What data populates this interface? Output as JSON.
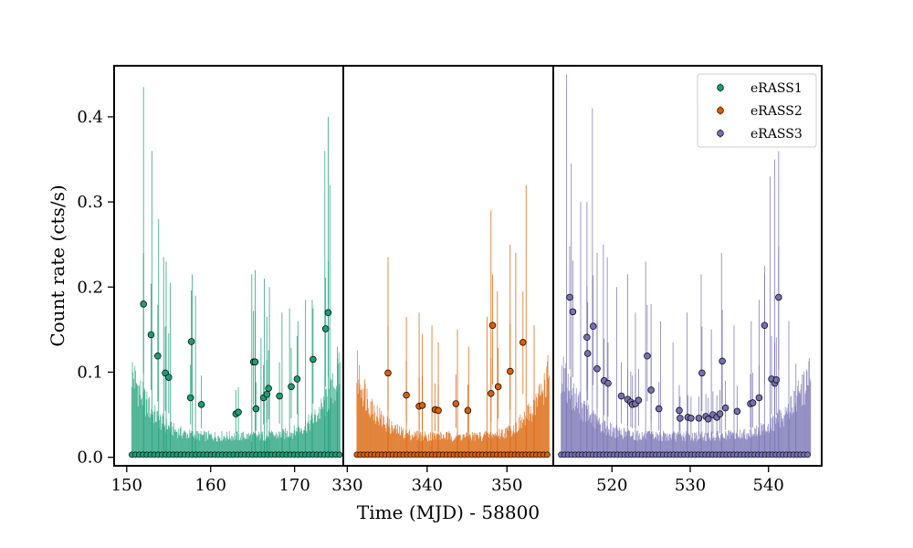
{
  "chart_data": {
    "type": "scatter",
    "subtype": "lightcurve-with-error-bars",
    "ylabel": "Count rate (cts/s)",
    "xlabel": "Time (MJD) - 58800",
    "ylim": [
      -0.01,
      0.46
    ],
    "yticks": [
      0.0,
      0.1,
      0.2,
      0.3,
      0.4
    ],
    "ytick_labels": [
      "0.0",
      "0.1",
      "0.2",
      "0.3",
      "0.4"
    ],
    "legend_position": "top-right",
    "panels": [
      {
        "name": "eRASS1",
        "color": "#1b9e77",
        "xlim": [
          148.5,
          175.8
        ],
        "xticks": [
          150,
          160,
          170
        ],
        "xtick_labels": [
          "150",
          "160",
          "170"
        ],
        "t_range": [
          150.6,
          175.4
        ],
        "points": [
          [
            152.0,
            0.18
          ],
          [
            152.9,
            0.144
          ],
          [
            153.7,
            0.119
          ],
          [
            154.6,
            0.099
          ],
          [
            155.0,
            0.094
          ],
          [
            157.6,
            0.07
          ],
          [
            157.7,
            0.136
          ],
          [
            158.9,
            0.062
          ],
          [
            163.0,
            0.051
          ],
          [
            163.3,
            0.053
          ],
          [
            165.1,
            0.112
          ],
          [
            165.3,
            0.112
          ],
          [
            165.4,
            0.057
          ],
          [
            166.3,
            0.07
          ],
          [
            166.7,
            0.074
          ],
          [
            166.9,
            0.081
          ],
          [
            168.2,
            0.072
          ],
          [
            169.6,
            0.083
          ],
          [
            170.3,
            0.092
          ],
          [
            172.2,
            0.115
          ],
          [
            173.7,
            0.151
          ],
          [
            174.0,
            0.17
          ]
        ],
        "spikes": [
          [
            152.0,
            0.435
          ],
          [
            153.0,
            0.36
          ],
          [
            153.8,
            0.28
          ],
          [
            154.4,
            0.235
          ],
          [
            154.7,
            0.23
          ],
          [
            155.2,
            0.205
          ],
          [
            157.8,
            0.215
          ],
          [
            158.2,
            0.19
          ],
          [
            164.9,
            0.215
          ],
          [
            165.3,
            0.22
          ],
          [
            166.0,
            0.14
          ],
          [
            166.4,
            0.21
          ],
          [
            166.7,
            0.165
          ],
          [
            167.0,
            0.2
          ],
          [
            168.5,
            0.17
          ],
          [
            169.4,
            0.175
          ],
          [
            170.4,
            0.16
          ],
          [
            171.3,
            0.185
          ],
          [
            172.1,
            0.185
          ],
          [
            173.6,
            0.36
          ],
          [
            174.0,
            0.4
          ],
          [
            174.2,
            0.32
          ],
          [
            175.1,
            0.13
          ]
        ]
      },
      {
        "name": "eRASS2",
        "color": "#d95f02",
        "xlim": [
          329.5,
          355.8
        ],
        "xticks": [
          330,
          340,
          350
        ],
        "xtick_labels": [
          "330",
          "340",
          "350"
        ],
        "t_range": [
          331.2,
          355.3
        ],
        "points": [
          [
            335.1,
            0.099
          ],
          [
            337.4,
            0.073
          ],
          [
            339.0,
            0.06
          ],
          [
            339.4,
            0.061
          ],
          [
            341.0,
            0.056
          ],
          [
            341.4,
            0.055
          ],
          [
            343.6,
            0.063
          ],
          [
            345.1,
            0.055
          ],
          [
            348.0,
            0.075
          ],
          [
            348.2,
            0.155
          ],
          [
            348.9,
            0.083
          ],
          [
            350.4,
            0.101
          ],
          [
            352.0,
            0.135
          ]
        ],
        "spikes": [
          [
            335.1,
            0.235
          ],
          [
            337.4,
            0.165
          ],
          [
            339.0,
            0.17
          ],
          [
            339.4,
            0.145
          ],
          [
            340.6,
            0.155
          ],
          [
            341.4,
            0.135
          ],
          [
            343.8,
            0.15
          ],
          [
            345.2,
            0.13
          ],
          [
            347.5,
            0.165
          ],
          [
            348.0,
            0.29
          ],
          [
            348.8,
            0.195
          ],
          [
            350.4,
            0.25
          ],
          [
            351.1,
            0.24
          ],
          [
            352.4,
            0.32
          ],
          [
            353.4,
            0.155
          ]
        ]
      },
      {
        "name": "eRASS3",
        "color": "#7570b3",
        "xlim": [
          512.5,
          546.8
        ],
        "xticks": [
          520,
          530,
          540
        ],
        "xtick_labels": [
          "520",
          "530",
          "540"
        ],
        "t_range": [
          513.5,
          545.4
        ],
        "points": [
          [
            514.6,
            0.188
          ],
          [
            515.0,
            0.171
          ],
          [
            516.8,
            0.141
          ],
          [
            516.9,
            0.122
          ],
          [
            517.6,
            0.154
          ],
          [
            518.1,
            0.104
          ],
          [
            519.0,
            0.09
          ],
          [
            519.5,
            0.087
          ],
          [
            521.2,
            0.072
          ],
          [
            522.0,
            0.068
          ],
          [
            522.4,
            0.065
          ],
          [
            522.6,
            0.062
          ],
          [
            523.0,
            0.063
          ],
          [
            523.4,
            0.067
          ],
          [
            524.5,
            0.119
          ],
          [
            525.0,
            0.079
          ],
          [
            526.0,
            0.057
          ],
          [
            528.6,
            0.055
          ],
          [
            528.7,
            0.046
          ],
          [
            529.7,
            0.047
          ],
          [
            530.1,
            0.046
          ],
          [
            531.1,
            0.046
          ],
          [
            531.5,
            0.099
          ],
          [
            532.0,
            0.048
          ],
          [
            532.3,
            0.045
          ],
          [
            532.9,
            0.05
          ],
          [
            533.4,
            0.047
          ],
          [
            533.8,
            0.051
          ],
          [
            534.1,
            0.113
          ],
          [
            534.5,
            0.058
          ],
          [
            536.0,
            0.054
          ],
          [
            537.7,
            0.063
          ],
          [
            538.0,
            0.064
          ],
          [
            538.8,
            0.07
          ],
          [
            539.5,
            0.155
          ],
          [
            540.4,
            0.092
          ],
          [
            540.8,
            0.087
          ],
          [
            541.0,
            0.091
          ],
          [
            541.3,
            0.188
          ]
        ],
        "spikes": [
          [
            514.2,
            0.45
          ],
          [
            514.8,
            0.345
          ],
          [
            516.0,
            0.3
          ],
          [
            516.8,
            0.3
          ],
          [
            517.5,
            0.41
          ],
          [
            518.1,
            0.24
          ],
          [
            518.9,
            0.25
          ],
          [
            519.4,
            0.235
          ],
          [
            520.6,
            0.2
          ],
          [
            522.0,
            0.215
          ],
          [
            523.0,
            0.17
          ],
          [
            524.3,
            0.23
          ],
          [
            525.0,
            0.18
          ],
          [
            526.2,
            0.16
          ],
          [
            527.8,
            0.135
          ],
          [
            529.6,
            0.17
          ],
          [
            531.4,
            0.215
          ],
          [
            532.7,
            0.15
          ],
          [
            534.0,
            0.24
          ],
          [
            535.6,
            0.155
          ],
          [
            537.8,
            0.16
          ],
          [
            538.8,
            0.185
          ],
          [
            539.5,
            0.225
          ],
          [
            540.2,
            0.33
          ],
          [
            540.8,
            0.35
          ],
          [
            541.3,
            0.36
          ],
          [
            542.6,
            0.16
          ],
          [
            543.5,
            0.11
          ]
        ]
      }
    ]
  }
}
